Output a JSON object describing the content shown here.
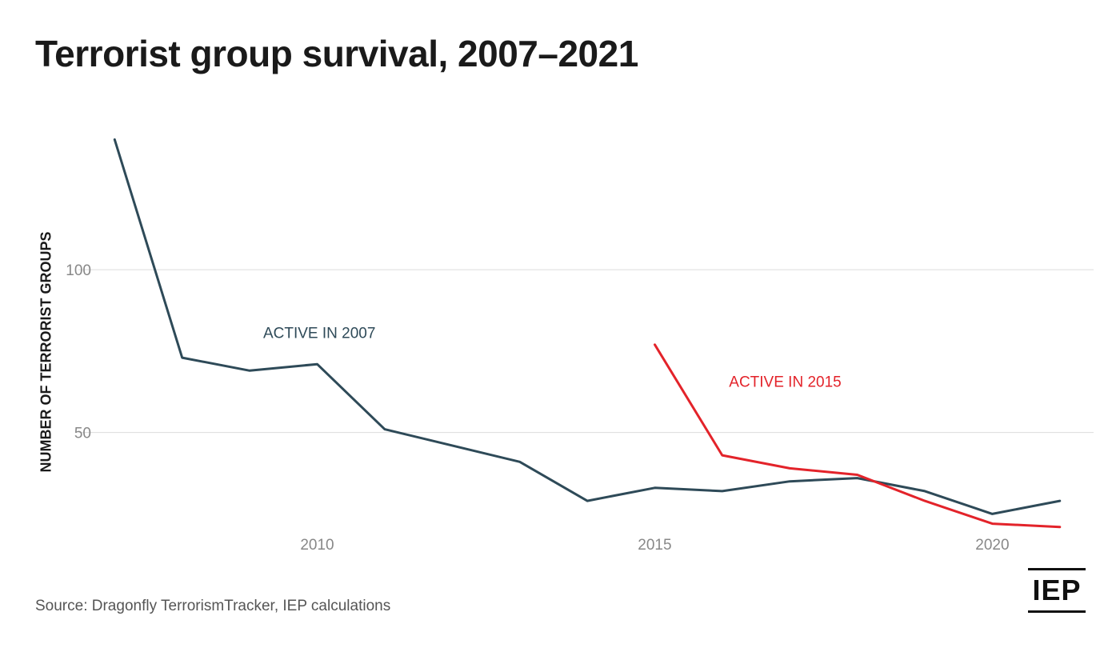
{
  "title": "Terrorist group survival, 2007–2021",
  "source": "Source: Dragonfly TerrorismTracker, IEP calculations",
  "logo_text": "IEP",
  "colors": {
    "series_2007": "#2e4a58",
    "series_2015": "#e3232a",
    "grid": "#dddddd",
    "tick": "#888888"
  },
  "chart_data": {
    "type": "line",
    "title": "Terrorist group survival, 2007–2021",
    "xlabel": "",
    "ylabel": "NUMBER OF TERRORIST GROUPS",
    "xlim": [
      2006.7,
      2021.5
    ],
    "ylim": [
      16,
      146
    ],
    "xticks": [
      2010,
      2015,
      2020
    ],
    "yticks": [
      50,
      100
    ],
    "grid": true,
    "legend": "inline-labels",
    "series": [
      {
        "name": "ACTIVE IN 2007",
        "color": "#2e4a58",
        "x": [
          2007,
          2008,
          2009,
          2010,
          2011,
          2012,
          2013,
          2014,
          2015,
          2016,
          2017,
          2018,
          2019,
          2020,
          2021
        ],
        "y": [
          140,
          73,
          69,
          71,
          51,
          46,
          41,
          29,
          33,
          32,
          35,
          36,
          32,
          25,
          29
        ]
      },
      {
        "name": "ACTIVE IN 2015",
        "color": "#e3232a",
        "x": [
          2015,
          2016,
          2017,
          2018,
          2019,
          2020,
          2021
        ],
        "y": [
          77,
          43,
          39,
          37,
          29,
          22,
          21
        ]
      }
    ]
  }
}
